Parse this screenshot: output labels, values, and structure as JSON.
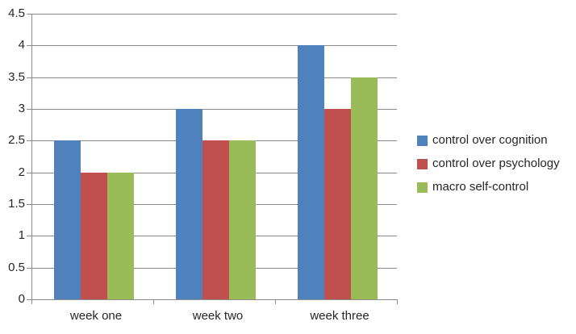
{
  "chart_data": {
    "type": "bar",
    "categories": [
      "week one",
      "week two",
      "week three"
    ],
    "series": [
      {
        "name": "control over cognition",
        "color": "#4F81BD",
        "values": [
          2.5,
          3.0,
          4.0
        ]
      },
      {
        "name": "control over psychology",
        "color": "#C0504D",
        "values": [
          2.0,
          2.5,
          3.0
        ]
      },
      {
        "name": "macro self-control",
        "color": "#9BBB59",
        "values": [
          2.0,
          2.5,
          3.5
        ]
      }
    ],
    "y_ticks": [
      "0",
      "0.5",
      "1",
      "1.5",
      "2",
      "2.5",
      "3",
      "3.5",
      "4",
      "4.5"
    ],
    "ylim": [
      0,
      4.5
    ],
    "y_step": 0.5,
    "grid": true,
    "legend_position": "right",
    "colors": {
      "gridline": "#8C8C8C",
      "axis": "#8C8C8C",
      "tick_text": "#262626"
    }
  }
}
